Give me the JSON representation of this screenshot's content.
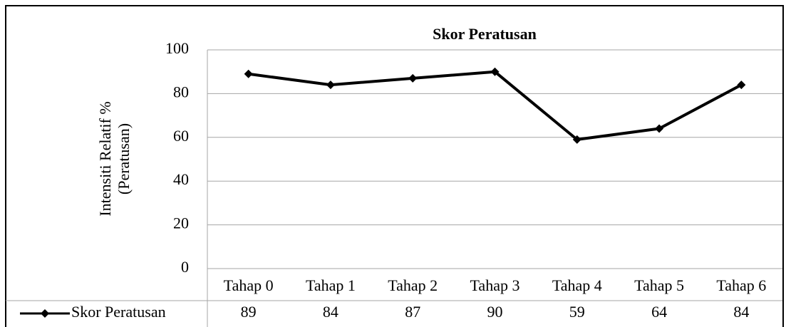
{
  "chart_data": {
    "type": "line",
    "title": "Skor Peratusan",
    "y_label": [
      "Intensiti Relatif %",
      "(Peratusan)"
    ],
    "categories": [
      "Tahap 0",
      "Tahap 1",
      "Tahap 2",
      "Tahap 3",
      "Tahap 4",
      "Tahap 5",
      "Tahap 6"
    ],
    "series": [
      {
        "name": "Skor Peratusan",
        "color": "#000000",
        "values": [
          89,
          84,
          87,
          90,
          59,
          64,
          84
        ]
      }
    ],
    "ylim": [
      0,
      100
    ],
    "yticks": [
      0,
      20,
      40,
      60,
      80,
      100
    ],
    "grid": true,
    "data_table": true
  }
}
